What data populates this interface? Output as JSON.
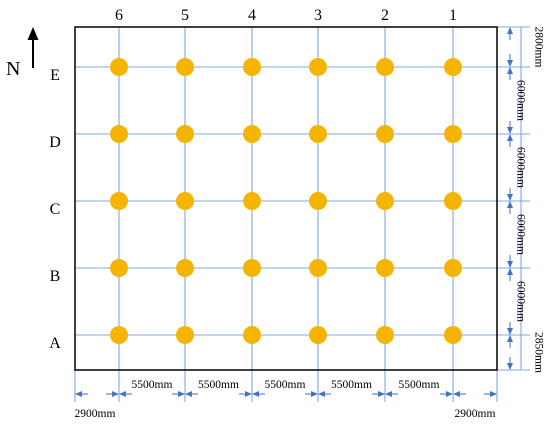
{
  "north_label": "N",
  "columns": [
    "6",
    "5",
    "4",
    "3",
    "2",
    "1"
  ],
  "rows": [
    "E",
    "D",
    "C",
    "B",
    "A"
  ],
  "bottom_spans": [
    "5500mm",
    "5500mm",
    "5500mm",
    "5500mm",
    "5500mm"
  ],
  "bottom_left_margin": "2900mm",
  "bottom_right_margin": "2900mm",
  "right_top_margin": "2800mm",
  "right_spans": [
    "6000mm",
    "6000mm",
    "6000mm",
    "6000mm"
  ],
  "right_bottom_margin": "2850mm",
  "colors": {
    "frame": "#000000",
    "grid": "#7FA7E8",
    "dot": "#F5B400",
    "dim_arrow": "#4472C4"
  }
}
